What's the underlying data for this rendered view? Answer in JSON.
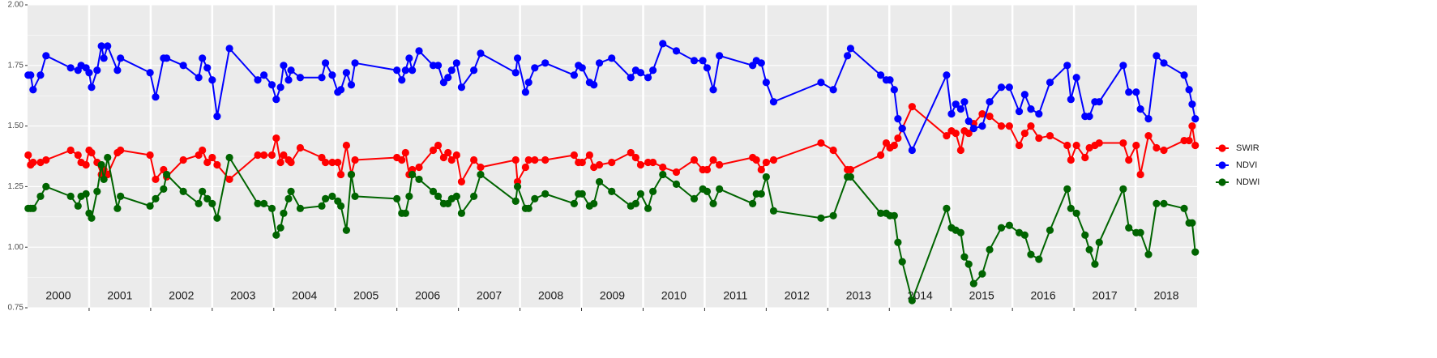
{
  "chart_data": {
    "type": "line",
    "xlim": [
      2000,
      2019
    ],
    "ylim": [
      0.75,
      2.0
    ],
    "xticks": [
      {
        "value": 2000.5,
        "label": "2000"
      },
      {
        "value": 2001.5,
        "label": "2001"
      },
      {
        "value": 2002.5,
        "label": "2002"
      },
      {
        "value": 2003.5,
        "label": "2003"
      },
      {
        "value": 2004.5,
        "label": "2004"
      },
      {
        "value": 2005.5,
        "label": "2005"
      },
      {
        "value": 2006.5,
        "label": "2006"
      },
      {
        "value": 2007.5,
        "label": "2007"
      },
      {
        "value": 2008.5,
        "label": "2008"
      },
      {
        "value": 2009.5,
        "label": "2009"
      },
      {
        "value": 2010.5,
        "label": "2010"
      },
      {
        "value": 2011.5,
        "label": "2011"
      },
      {
        "value": 2012.5,
        "label": "2012"
      },
      {
        "value": 2013.5,
        "label": "2013"
      },
      {
        "value": 2014.5,
        "label": "2014"
      },
      {
        "value": 2015.5,
        "label": "2015"
      },
      {
        "value": 2016.5,
        "label": "2016"
      },
      {
        "value": 2017.5,
        "label": "2017"
      },
      {
        "value": 2018.5,
        "label": "2018"
      }
    ],
    "yticks": [
      {
        "value": 0.75,
        "label": "0.75"
      },
      {
        "value": 1,
        "label": "1.00"
      },
      {
        "value": 1.25,
        "label": "1.25"
      },
      {
        "value": 1.5,
        "label": "1.50"
      },
      {
        "value": 1.75,
        "label": "1.75"
      },
      {
        "value": 2,
        "label": "2.00"
      }
    ],
    "grid": true,
    "legend": "right",
    "x": [
      2000.01,
      2000.05,
      2000.09,
      2000.21,
      2000.3,
      2000.7,
      2000.82,
      2000.87,
      2000.95,
      2001.0,
      2001.04,
      2001.13,
      2001.2,
      2001.24,
      2001.3,
      2001.46,
      2001.51,
      2001.99,
      2002.08,
      2002.21,
      2002.26,
      2002.53,
      2002.78,
      2002.84,
      2002.92,
      2003.0,
      2003.08,
      2003.28,
      2003.74,
      2003.84,
      2003.97,
      2004.04,
      2004.11,
      2004.16,
      2004.24,
      2004.28,
      2004.43,
      2004.78,
      2004.84,
      2004.95,
      2005.04,
      2005.09,
      2005.18,
      2005.26,
      2005.32,
      2006.0,
      2006.08,
      2006.14,
      2006.2,
      2006.25,
      2006.36,
      2006.59,
      2006.67,
      2006.76,
      2006.83,
      2006.89,
      2006.97,
      2007.05,
      2007.25,
      2007.36,
      2007.93,
      2007.96,
      2008.09,
      2008.14,
      2008.24,
      2008.41,
      2008.88,
      2008.95,
      2009.01,
      2009.13,
      2009.2,
      2009.29,
      2009.49,
      2009.8,
      2009.88,
      2009.96,
      2010.08,
      2010.16,
      2010.32,
      2010.54,
      2010.83,
      2010.97,
      2011.04,
      2011.14,
      2011.24,
      2011.78,
      2011.84,
      2011.92,
      2012.0,
      2012.12,
      2012.89,
      2013.09,
      2013.32,
      2013.37,
      2013.86,
      2013.95,
      2014.01,
      2014.08,
      2014.14,
      2014.21,
      2014.37,
      2014.93,
      2015.01,
      2015.08,
      2015.16,
      2015.22,
      2015.29,
      2015.37,
      2015.51,
      2015.63,
      2015.82,
      2015.95,
      2016.11,
      2016.2,
      2016.3,
      2016.43,
      2016.61,
      2016.89,
      2016.95,
      2017.04,
      2017.18,
      2017.25,
      2017.34,
      2017.41,
      2017.8,
      2017.89,
      2018.01,
      2018.08,
      2018.21,
      2018.34,
      2018.46,
      2018.79,
      2018.87,
      2018.92,
      2018.97
    ],
    "series": [
      {
        "name": "SWIR",
        "color": "#ff0000",
        "values": [
          1.38,
          1.34,
          1.35,
          1.35,
          1.36,
          1.4,
          1.38,
          1.35,
          1.34,
          1.4,
          1.39,
          1.35,
          1.3,
          1.32,
          1.3,
          1.39,
          1.4,
          1.38,
          1.28,
          1.32,
          1.29,
          1.36,
          1.38,
          1.4,
          1.35,
          1.37,
          1.34,
          1.28,
          1.38,
          1.38,
          1.38,
          1.45,
          1.35,
          1.38,
          1.36,
          1.35,
          1.41,
          1.37,
          1.35,
          1.35,
          1.35,
          1.3,
          1.42,
          1.3,
          1.36,
          1.37,
          1.36,
          1.39,
          1.3,
          1.32,
          1.33,
          1.4,
          1.42,
          1.37,
          1.39,
          1.36,
          1.38,
          1.27,
          1.36,
          1.33,
          1.36,
          1.27,
          1.33,
          1.36,
          1.36,
          1.36,
          1.38,
          1.35,
          1.35,
          1.38,
          1.33,
          1.34,
          1.35,
          1.39,
          1.37,
          1.34,
          1.35,
          1.35,
          1.33,
          1.31,
          1.36,
          1.32,
          1.32,
          1.36,
          1.34,
          1.37,
          1.36,
          1.32,
          1.35,
          1.36,
          1.43,
          1.4,
          1.32,
          1.32,
          1.38,
          1.43,
          1.41,
          1.42,
          1.45,
          1.49,
          1.58,
          1.46,
          1.48,
          1.47,
          1.4,
          1.48,
          1.47,
          1.51,
          1.55,
          1.54,
          1.5,
          1.5,
          1.42,
          1.47,
          1.5,
          1.45,
          1.46,
          1.42,
          1.36,
          1.42,
          1.37,
          1.41,
          1.42,
          1.43,
          1.43,
          1.36,
          1.42,
          1.3,
          1.46,
          1.41,
          1.4,
          1.44,
          1.44,
          1.5,
          1.42
        ]
      },
      {
        "name": "NDVI",
        "color": "#0000ff",
        "values": [
          1.71,
          1.71,
          1.65,
          1.71,
          1.79,
          1.74,
          1.73,
          1.75,
          1.74,
          1.72,
          1.66,
          1.73,
          1.83,
          1.78,
          1.83,
          1.73,
          1.78,
          1.72,
          1.62,
          1.78,
          1.78,
          1.75,
          1.7,
          1.78,
          1.74,
          1.69,
          1.54,
          1.82,
          1.69,
          1.71,
          1.67,
          1.61,
          1.66,
          1.75,
          1.69,
          1.73,
          1.7,
          1.7,
          1.76,
          1.71,
          1.64,
          1.65,
          1.72,
          1.67,
          1.76,
          1.73,
          1.69,
          1.73,
          1.78,
          1.73,
          1.81,
          1.75,
          1.75,
          1.68,
          1.7,
          1.73,
          1.76,
          1.66,
          1.73,
          1.8,
          1.72,
          1.78,
          1.64,
          1.68,
          1.74,
          1.76,
          1.71,
          1.75,
          1.74,
          1.68,
          1.67,
          1.76,
          1.78,
          1.7,
          1.73,
          1.72,
          1.7,
          1.73,
          1.84,
          1.81,
          1.77,
          1.77,
          1.74,
          1.65,
          1.79,
          1.75,
          1.77,
          1.76,
          1.68,
          1.6,
          1.68,
          1.65,
          1.79,
          1.82,
          1.71,
          1.69,
          1.69,
          1.65,
          1.53,
          1.49,
          1.4,
          1.71,
          1.55,
          1.59,
          1.57,
          1.6,
          1.52,
          1.49,
          1.5,
          1.6,
          1.66,
          1.66,
          1.56,
          1.63,
          1.57,
          1.55,
          1.68,
          1.75,
          1.61,
          1.7,
          1.54,
          1.54,
          1.6,
          1.6,
          1.75,
          1.64,
          1.64,
          1.57,
          1.53,
          1.79,
          1.76,
          1.71,
          1.65,
          1.59,
          1.53
        ]
      },
      {
        "name": "NDWI",
        "color": "#006400",
        "values": [
          1.16,
          1.16,
          1.16,
          1.21,
          1.25,
          1.21,
          1.17,
          1.21,
          1.22,
          1.14,
          1.12,
          1.23,
          1.34,
          1.28,
          1.37,
          1.16,
          1.21,
          1.17,
          1.2,
          1.24,
          1.3,
          1.23,
          1.18,
          1.23,
          1.2,
          1.18,
          1.12,
          1.37,
          1.18,
          1.18,
          1.16,
          1.05,
          1.08,
          1.14,
          1.2,
          1.23,
          1.16,
          1.17,
          1.2,
          1.21,
          1.19,
          1.17,
          1.07,
          1.3,
          1.21,
          1.2,
          1.14,
          1.14,
          1.21,
          1.3,
          1.28,
          1.23,
          1.21,
          1.18,
          1.18,
          1.2,
          1.21,
          1.14,
          1.21,
          1.3,
          1.19,
          1.25,
          1.16,
          1.16,
          1.2,
          1.22,
          1.18,
          1.22,
          1.22,
          1.17,
          1.18,
          1.27,
          1.23,
          1.17,
          1.18,
          1.22,
          1.16,
          1.23,
          1.3,
          1.26,
          1.2,
          1.24,
          1.23,
          1.18,
          1.24,
          1.18,
          1.22,
          1.22,
          1.29,
          1.15,
          1.12,
          1.13,
          1.29,
          1.29,
          1.14,
          1.14,
          1.13,
          1.13,
          1.02,
          0.94,
          0.78,
          1.16,
          1.08,
          1.07,
          1.06,
          0.96,
          0.93,
          0.85,
          0.89,
          0.99,
          1.08,
          1.09,
          1.06,
          1.05,
          0.97,
          0.95,
          1.07,
          1.24,
          1.16,
          1.14,
          1.05,
          0.99,
          0.93,
          1.02,
          1.24,
          1.08,
          1.06,
          1.06,
          0.97,
          1.18,
          1.18,
          1.16,
          1.1,
          1.1,
          0.98
        ]
      }
    ]
  }
}
